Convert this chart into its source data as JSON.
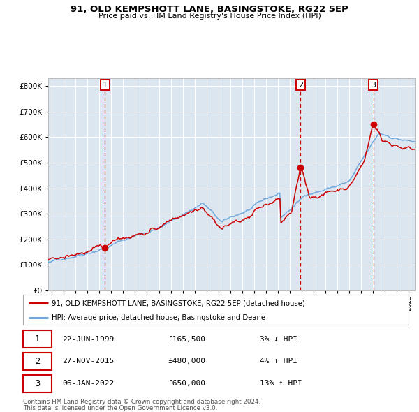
{
  "title": "91, OLD KEMPSHOTT LANE, BASINGSTOKE, RG22 5EP",
  "subtitle": "Price paid vs. HM Land Registry's House Price Index (HPI)",
  "legend_line1": "91, OLD KEMPSHOTT LANE, BASINGSTOKE, RG22 5EP (detached house)",
  "legend_line2": "HPI: Average price, detached house, Basingstoke and Deane",
  "footer1": "Contains HM Land Registry data © Crown copyright and database right 2024.",
  "footer2": "This data is licensed under the Open Government Licence v3.0.",
  "transactions": [
    {
      "num": 1,
      "date": "22-JUN-1999",
      "price": 165500,
      "pct": "3%",
      "dir": "↓"
    },
    {
      "num": 2,
      "date": "27-NOV-2015",
      "price": 480000,
      "pct": "4%",
      "dir": "↑"
    },
    {
      "num": 3,
      "date": "06-JAN-2022",
      "price": 650000,
      "pct": "13%",
      "dir": "↑"
    }
  ],
  "transaction_dates": [
    1999.47,
    2015.9,
    2022.02
  ],
  "transaction_prices": [
    165500,
    480000,
    650000
  ],
  "hpi_color": "#6fa8dc",
  "price_color": "#cc0000",
  "dot_color": "#cc0000",
  "vline_color": "#cc0000",
  "plot_bg": "#dce6f1",
  "grid_color": "#ffffff",
  "ylim": [
    0,
    830000
  ],
  "yticks": [
    0,
    100000,
    200000,
    300000,
    400000,
    500000,
    600000,
    700000,
    800000
  ],
  "xlim_start": 1994.7,
  "xlim_end": 2025.5
}
